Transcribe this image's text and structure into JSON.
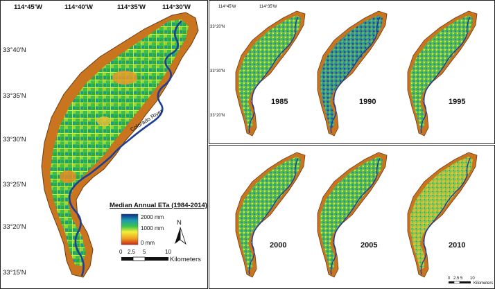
{
  "main_map": {
    "lon_labels": [
      "114°45'W",
      "114°40'W",
      "114°35'W",
      "114°30'W"
    ],
    "lat_labels": [
      "33°40'N",
      "33°35'N",
      "33°30'N",
      "33°25'N",
      "33°20'N",
      "33°15'N"
    ],
    "river_label": "Colorado River"
  },
  "legend": {
    "title": "Median Annual ETa (1984-2014)",
    "high": "2000 mm",
    "mid": "1000 mm",
    "low": "0 mm",
    "colors": [
      "#c8281c",
      "#f0a020",
      "#f2ee3a",
      "#3cc24c",
      "#1e9ab0",
      "#0b2c8a"
    ]
  },
  "north_arrow": {
    "label": "N"
  },
  "scale_bar": {
    "ticks": [
      "0",
      "2.5",
      "5",
      "10"
    ],
    "unit": "Kilometers"
  },
  "inset_axes": {
    "lon_labels": [
      "114°45'W",
      "114°35'W"
    ],
    "lat_labels": [
      "33°20'N",
      "33°30'N",
      "33°20'N"
    ]
  },
  "panels": [
    {
      "year": "1985"
    },
    {
      "year": "1990"
    },
    {
      "year": "1995"
    },
    {
      "year": "2000"
    },
    {
      "year": "2005"
    },
    {
      "year": "2010"
    }
  ],
  "small_scale": {
    "ticks": [
      "0",
      "2.5",
      "5",
      "10"
    ],
    "unit": "Kilometers"
  }
}
